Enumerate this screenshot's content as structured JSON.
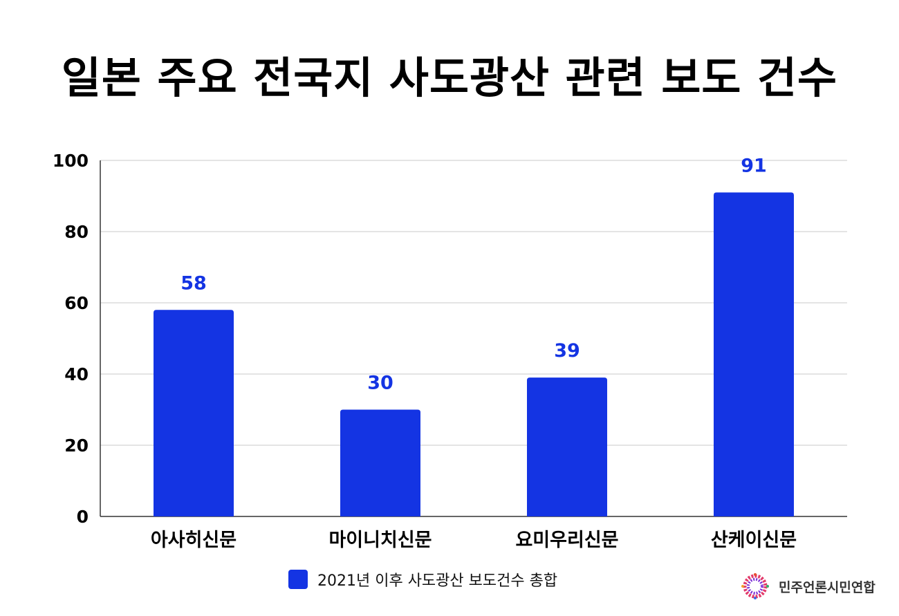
{
  "title": "일본 주요 전국지 사도광산 관련 보도 건수",
  "accent_color": "#1434e3",
  "chart_data": {
    "type": "bar",
    "categories": [
      "아사히신문",
      "마이니치신문",
      "요미우리신문",
      "산케이신문"
    ],
    "series": [
      {
        "name": "2021년 이후 사도광산 보도건수 총합",
        "values": [
          58,
          30,
          39,
          91
        ]
      }
    ],
    "ylim": [
      0,
      100
    ],
    "yticks": [
      0,
      20,
      40,
      60,
      80,
      100
    ],
    "grid": true,
    "legend_position": "bottom",
    "data_labels": true
  },
  "legend": {
    "label": "2021년 이후 사도광산 보도건수 총합"
  },
  "brand": {
    "name": "민주언론시민연합",
    "icon": "flower-logo-icon"
  }
}
